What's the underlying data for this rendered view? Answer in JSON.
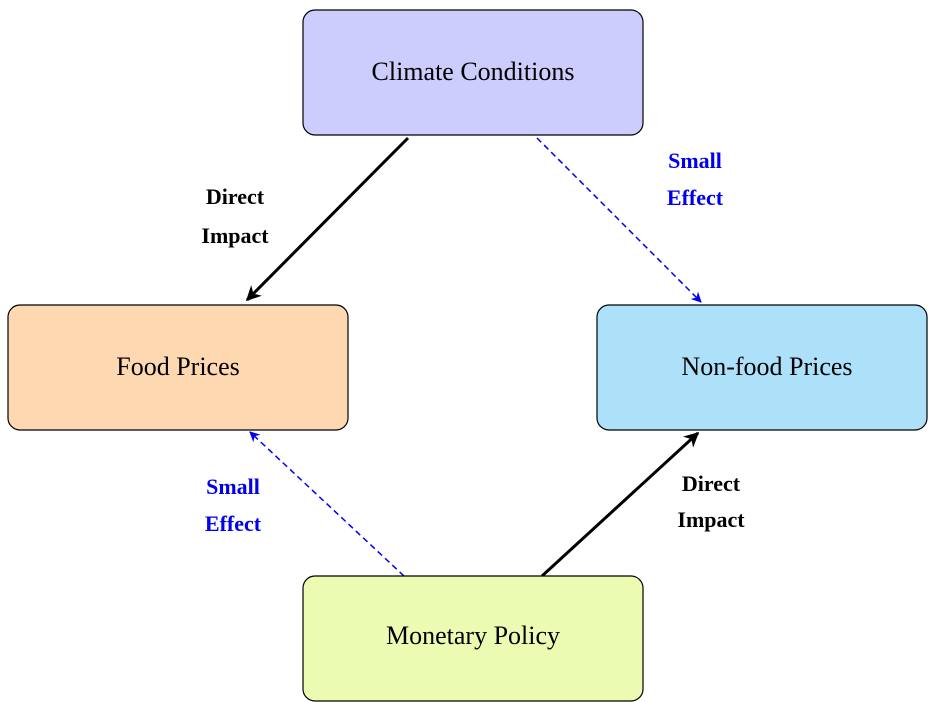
{
  "nodes": [
    {
      "label": "Climate Conditions"
    },
    {
      "label": "Food Prices"
    },
    {
      "label": "Non-food Prices"
    },
    {
      "label": "Monetary Policy"
    }
  ],
  "edges": [
    {
      "label": [
        "Direct",
        "Impact"
      ]
    },
    {
      "label": [
        "Small",
        "Effect"
      ]
    },
    {
      "label": [
        "Small",
        "Effect"
      ]
    },
    {
      "label": [
        "Direct",
        "Impact"
      ]
    }
  ]
}
